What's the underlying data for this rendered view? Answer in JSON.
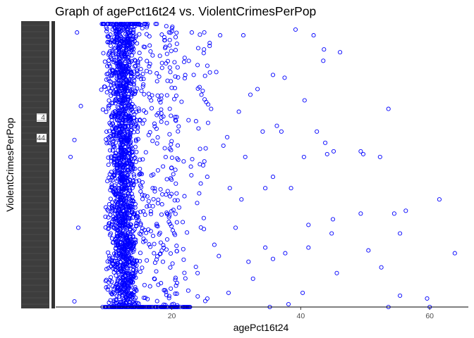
{
  "chart_data": {
    "type": "scatter",
    "title": "Graph of agePct16t24 vs. ViolentCrimesPerPop",
    "xlabel": "agePct16t24",
    "ylabel": "ViolentCrimesPerPop",
    "x_ticks": [
      20,
      40,
      60
    ],
    "xlim": [
      2,
      66
    ],
    "y_axis_labels_overlapping": true,
    "y_visible_tick_labels": [
      "4",
      "44"
    ],
    "grid": false,
    "legend": "none",
    "point_color": "#0000ff",
    "marker": "open-circle",
    "x_distribution": "dense cluster between 7 and 19, sparse tail to 64",
    "n_points_approx": 1994,
    "sparse_points": [
      [
        5.3,
        0.97
      ],
      [
        5.9,
        0.71
      ],
      [
        4.3,
        0.53
      ],
      [
        4.9,
        0.59
      ],
      [
        5.5,
        0.28
      ],
      [
        4.9,
        0.02
      ],
      [
        20.1,
        0.99
      ],
      [
        23.1,
        0.97
      ],
      [
        27.5,
        0.96
      ],
      [
        31.1,
        0.96
      ],
      [
        39.2,
        0.98
      ],
      [
        42.0,
        0.96
      ],
      [
        43.6,
        0.91
      ],
      [
        46.1,
        0.9
      ],
      [
        43.5,
        0.87
      ],
      [
        32.2,
        0.75
      ],
      [
        35.7,
        0.82
      ],
      [
        37.5,
        0.81
      ],
      [
        40.6,
        0.73
      ],
      [
        53.6,
        0.7
      ],
      [
        36.3,
        0.64
      ],
      [
        37.0,
        0.62
      ],
      [
        34.1,
        0.62
      ],
      [
        42.5,
        0.62
      ],
      [
        43.8,
        0.58
      ],
      [
        44.1,
        0.54
      ],
      [
        45.1,
        0.55
      ],
      [
        49.3,
        0.55
      ],
      [
        49.7,
        0.54
      ],
      [
        52.3,
        0.53
      ],
      [
        40.5,
        0.53
      ],
      [
        28.0,
        0.57
      ],
      [
        31.4,
        0.53
      ],
      [
        35.7,
        0.46
      ],
      [
        34.5,
        0.42
      ],
      [
        38.5,
        0.42
      ],
      [
        61.5,
        0.38
      ],
      [
        49.3,
        0.33
      ],
      [
        54.5,
        0.33
      ],
      [
        56.3,
        0.34
      ],
      [
        45.0,
        0.31
      ],
      [
        41.2,
        0.29
      ],
      [
        44.8,
        0.26
      ],
      [
        55.4,
        0.26
      ],
      [
        63.9,
        0.19
      ],
      [
        50.5,
        0.2
      ],
      [
        34.5,
        0.21
      ],
      [
        37.6,
        0.19
      ],
      [
        41.2,
        0.21
      ],
      [
        45.6,
        0.12
      ],
      [
        52.5,
        0.14
      ],
      [
        35.7,
        0.17
      ],
      [
        55.4,
        0.04
      ],
      [
        59.6,
        0.03
      ],
      [
        40.3,
        0.05
      ],
      [
        60.0,
        0.0
      ],
      [
        53.6,
        0.0
      ],
      [
        35.2,
        0.0
      ],
      [
        38.1,
        0.01
      ],
      [
        27.3,
        0.18
      ],
      [
        29.9,
        0.28
      ],
      [
        25.5,
        0.46
      ],
      [
        22.6,
        0.66
      ],
      [
        24.6,
        0.75
      ],
      [
        26.1,
        0.7
      ],
      [
        23.4,
        0.82
      ],
      [
        22.0,
        0.88
      ],
      [
        28.6,
        0.6
      ],
      [
        30.8,
        0.38
      ],
      [
        26.6,
        0.22
      ],
      [
        32.6,
        0.1
      ],
      [
        28.8,
        0.05
      ],
      [
        24.0,
        0.12
      ],
      [
        21.7,
        0.3
      ],
      [
        29.0,
        0.42
      ],
      [
        31.9,
        0.16
      ],
      [
        26.9,
        0.83
      ],
      [
        25.0,
        0.91
      ],
      [
        33.3,
        0.77
      ],
      [
        30.4,
        0.69
      ],
      [
        21.0,
        0.52
      ]
    ]
  }
}
